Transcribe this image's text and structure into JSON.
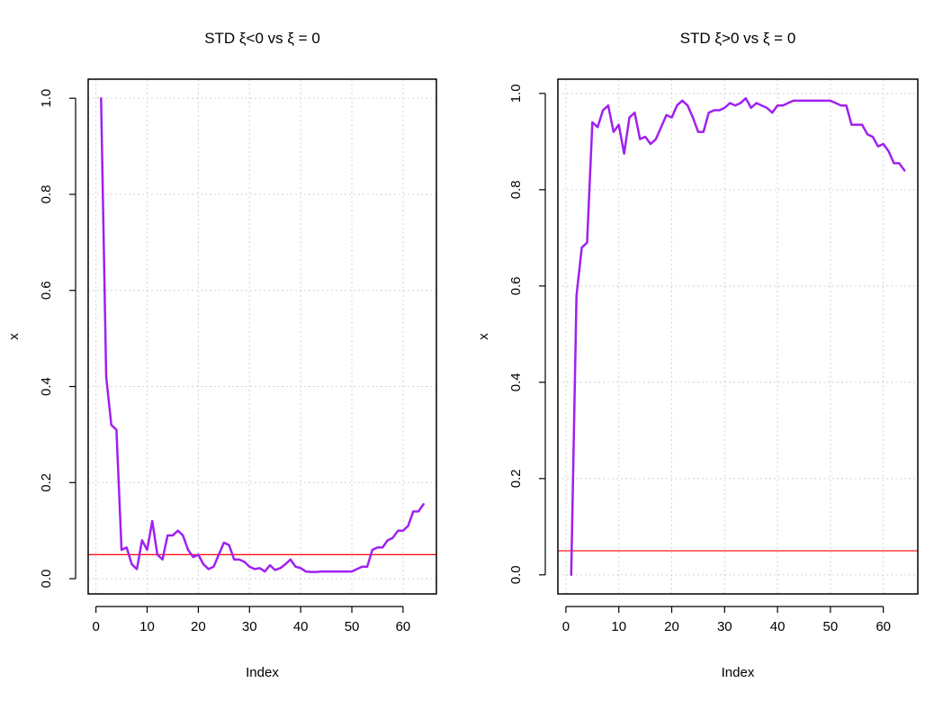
{
  "colors": {
    "series": "#a020f0",
    "reference": "#ff0000",
    "grid": "#d3d3d3",
    "frame": "#000000"
  },
  "chart_data": [
    {
      "type": "line",
      "title": "STD ξ<0 vs ξ = 0",
      "xlabel": "Index",
      "ylabel": "x",
      "xlim": [
        1,
        64
      ],
      "ylim": [
        0.008,
        1.0
      ],
      "xticks": [
        0,
        10,
        20,
        30,
        40,
        50,
        60
      ],
      "yticks": [
        0.0,
        0.2,
        0.4,
        0.6,
        0.8,
        1.0
      ],
      "grid": true,
      "hline": 0.05,
      "series": [
        {
          "x": [
            1,
            2,
            3,
            4,
            5,
            6,
            7,
            8,
            9,
            10,
            11,
            12,
            13,
            14,
            15,
            16,
            17,
            18,
            19,
            20,
            21,
            22,
            23,
            24,
            25,
            26,
            27,
            28,
            29,
            30,
            31,
            32,
            33,
            34,
            35,
            36,
            37,
            38,
            39,
            40,
            41,
            42,
            43,
            44,
            45,
            46,
            47,
            48,
            49,
            50,
            51,
            52,
            53,
            54,
            55,
            56,
            57,
            58,
            59,
            60,
            61,
            62,
            63,
            64
          ],
          "values": [
            1.0,
            0.42,
            0.32,
            0.31,
            0.06,
            0.065,
            0.03,
            0.02,
            0.08,
            0.06,
            0.12,
            0.05,
            0.04,
            0.09,
            0.09,
            0.1,
            0.09,
            0.06,
            0.045,
            0.05,
            0.03,
            0.02,
            0.025,
            0.05,
            0.075,
            0.07,
            0.04,
            0.04,
            0.035,
            0.025,
            0.02,
            0.022,
            0.015,
            0.028,
            0.018,
            0.022,
            0.03,
            0.04,
            0.025,
            0.022,
            0.015,
            0.014,
            0.014,
            0.015,
            0.015,
            0.015,
            0.015,
            0.015,
            0.015,
            0.015,
            0.02,
            0.025,
            0.025,
            0.06,
            0.065,
            0.065,
            0.08,
            0.085,
            0.1,
            0.1,
            0.11,
            0.14,
            0.14,
            0.155
          ]
        }
      ]
    },
    {
      "type": "line",
      "title": "STD ξ>0 vs ξ = 0",
      "xlabel": "Index",
      "ylabel": "x",
      "xlim": [
        1,
        64
      ],
      "ylim": [
        0.0,
        0.99
      ],
      "xticks": [
        0,
        10,
        20,
        30,
        40,
        50,
        60
      ],
      "yticks": [
        0.0,
        0.2,
        0.4,
        0.6,
        0.8,
        1.0
      ],
      "grid": true,
      "hline": 0.05,
      "series": [
        {
          "x": [
            1,
            2,
            3,
            4,
            5,
            6,
            7,
            8,
            9,
            10,
            11,
            12,
            13,
            14,
            15,
            16,
            17,
            18,
            19,
            20,
            21,
            22,
            23,
            24,
            25,
            26,
            27,
            28,
            29,
            30,
            31,
            32,
            33,
            34,
            35,
            36,
            37,
            38,
            39,
            40,
            41,
            42,
            43,
            44,
            45,
            46,
            47,
            48,
            49,
            50,
            51,
            52,
            53,
            54,
            55,
            56,
            57,
            58,
            59,
            60,
            61,
            62,
            63,
            64
          ],
          "values": [
            0.0,
            0.58,
            0.68,
            0.69,
            0.94,
            0.93,
            0.965,
            0.975,
            0.92,
            0.935,
            0.875,
            0.95,
            0.96,
            0.905,
            0.91,
            0.895,
            0.905,
            0.93,
            0.955,
            0.95,
            0.975,
            0.985,
            0.975,
            0.95,
            0.92,
            0.92,
            0.96,
            0.965,
            0.965,
            0.97,
            0.98,
            0.975,
            0.98,
            0.99,
            0.97,
            0.98,
            0.975,
            0.97,
            0.96,
            0.975,
            0.975,
            0.98,
            0.985,
            0.985,
            0.985,
            0.985,
            0.985,
            0.985,
            0.985,
            0.985,
            0.98,
            0.975,
            0.975,
            0.935,
            0.935,
            0.935,
            0.915,
            0.91,
            0.89,
            0.895,
            0.88,
            0.855,
            0.855,
            0.84
          ]
        }
      ]
    }
  ]
}
